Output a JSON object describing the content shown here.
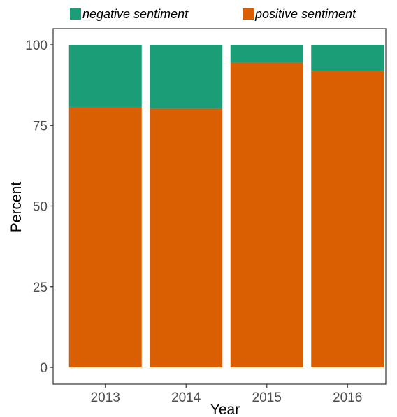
{
  "chart_data": {
    "type": "bar",
    "stacked": true,
    "categories": [
      "2013",
      "2014",
      "2015",
      "2016"
    ],
    "series": [
      {
        "name": "positive sentiment",
        "values": [
          80.7,
          80.3,
          94.6,
          91.8
        ],
        "color": "#d95f02"
      },
      {
        "name": "negative sentiment",
        "values": [
          19.3,
          19.7,
          5.4,
          8.2
        ],
        "color": "#1b9e77"
      }
    ],
    "legend_order": [
      "negative sentiment",
      "positive sentiment"
    ],
    "legend_position": "top",
    "xlabel": "Year",
    "ylabel": "Percent",
    "ylim": [
      0,
      100
    ],
    "yticks": [
      0,
      25,
      50,
      75,
      100
    ],
    "grid": false,
    "panel_border": true
  }
}
